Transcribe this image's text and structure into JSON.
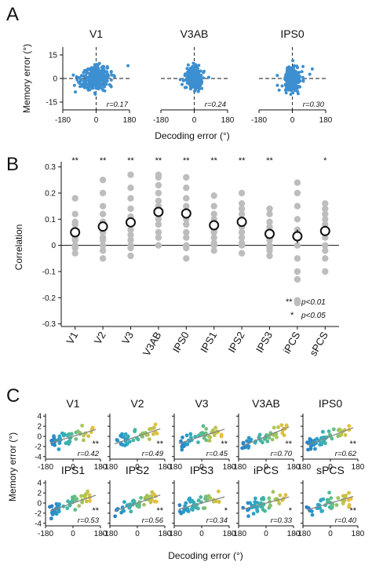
{
  "colors": {
    "scatter_blue": "#3c8fd0",
    "gray_point": "#bdbdbd",
    "colormap": [
      "#2c7fc4",
      "#2aa6c8",
      "#49b89a",
      "#a6c557",
      "#efbe3a"
    ],
    "fit_line": "#888888",
    "axis": "#111111"
  },
  "chart_data": [
    {
      "panel": "A",
      "type": "scatter",
      "ylabel": "Memory error (°)",
      "xlabel": "Decoding error (°)",
      "xticks": [
        "-180",
        "0",
        "180"
      ],
      "yticks": [
        "15",
        "0",
        "-15"
      ],
      "xlim": [
        -180,
        180
      ],
      "ylim": [
        -20,
        20
      ],
      "subplots": [
        {
          "title": "V1",
          "r": "r=0.17",
          "r_value": 0.17,
          "n_points": 300
        },
        {
          "title": "V3AB",
          "r": "r=0.24",
          "r_value": 0.24,
          "n_points": 240
        },
        {
          "title": "IPS0",
          "r": "r=0.30",
          "r_value": 0.3,
          "n_points": 240
        }
      ]
    },
    {
      "panel": "B",
      "type": "scatter",
      "ylabel": "Correlation",
      "ylim": [
        -0.31,
        0.32
      ],
      "yticks": [
        "0.3",
        "0.2",
        "0.1",
        "0",
        "-0.1",
        "-0.2",
        "-0.3"
      ],
      "categories": [
        "V1",
        "V2",
        "V3",
        "V3AB",
        "IPS0",
        "IPS1",
        "IPS2",
        "IPS3",
        "iPCS",
        "sPCS"
      ],
      "mean": [
        0.05,
        0.072,
        0.088,
        0.128,
        0.122,
        0.077,
        0.09,
        0.044,
        0.035,
        0.055
      ],
      "sem": [
        0.015,
        0.018,
        0.018,
        0.018,
        0.02,
        0.015,
        0.017,
        0.016,
        0.025,
        0.02
      ],
      "significance": [
        "**",
        "**",
        "**",
        "**",
        "**",
        "**",
        "**",
        "**",
        "",
        "*"
      ],
      "individual": [
        [
          0.18,
          0.12,
          0.09,
          0.08,
          0.06,
          0.05,
          0.04,
          0.03,
          0.02,
          -0.01,
          -0.03,
          0.0
        ],
        [
          0.25,
          0.2,
          0.15,
          0.12,
          0.09,
          0.07,
          0.05,
          0.03,
          0.02,
          -0.02,
          -0.05,
          0.0
        ],
        [
          0.27,
          0.22,
          0.18,
          0.14,
          0.11,
          0.09,
          0.06,
          0.04,
          0.02,
          -0.01,
          -0.04,
          0.0
        ],
        [
          0.27,
          0.26,
          0.23,
          0.2,
          0.17,
          0.15,
          0.13,
          0.1,
          0.08,
          0.05,
          0.03,
          0.0
        ],
        [
          0.26,
          0.22,
          0.18,
          0.15,
          0.13,
          0.1,
          0.08,
          0.05,
          0.03,
          -0.01,
          -0.05,
          0.0
        ],
        [
          0.19,
          0.15,
          0.12,
          0.1,
          0.08,
          0.07,
          0.06,
          0.05,
          0.03,
          0.01,
          -0.02,
          0.0
        ],
        [
          0.2,
          0.16,
          0.14,
          0.12,
          0.1,
          0.08,
          0.07,
          0.05,
          0.03,
          0.01,
          -0.03,
          0.0
        ],
        [
          0.14,
          0.12,
          0.09,
          0.07,
          0.05,
          0.04,
          0.03,
          0.02,
          0.0,
          -0.02,
          -0.04,
          -0.01
        ],
        [
          0.24,
          0.2,
          0.15,
          0.1,
          0.06,
          0.03,
          0.0,
          -0.05,
          -0.1,
          -0.13,
          -0.21,
          -0.22
        ],
        [
          0.16,
          0.14,
          0.12,
          0.1,
          0.08,
          0.06,
          0.05,
          0.03,
          0.0,
          -0.02,
          -0.05,
          -0.1
        ]
      ],
      "legend": [
        {
          "stars": "**",
          "label": "p<0.01"
        },
        {
          "stars": "*",
          "label": "p<0.05"
        }
      ]
    },
    {
      "panel": "C",
      "type": "scatter",
      "ylabel": "Memory error (°)",
      "xlabel": "Decoding error (°)",
      "xticks": [
        "-180",
        "0",
        "180"
      ],
      "yticks": [
        "4",
        "2",
        "0",
        "-2",
        "-4"
      ],
      "xlim": [
        -180,
        180
      ],
      "ylim": [
        -4.5,
        4.5
      ],
      "subplots": [
        {
          "title": "V1",
          "r": "r=0.42",
          "r_value": 0.42,
          "sig": "**"
        },
        {
          "title": "V2",
          "r": "r=0.49",
          "r_value": 0.49,
          "sig": "**"
        },
        {
          "title": "V3",
          "r": "r=0.45",
          "r_value": 0.45,
          "sig": "**"
        },
        {
          "title": "V3AB",
          "r": "r=0.70",
          "r_value": 0.7,
          "sig": "**"
        },
        {
          "title": "IPS0",
          "r": "r=0.62",
          "r_value": 0.62,
          "sig": "**"
        },
        {
          "title": "IPS1",
          "r": "r=0.53",
          "r_value": 0.53,
          "sig": "**"
        },
        {
          "title": "IPS2",
          "r": "r=0.56",
          "r_value": 0.56,
          "sig": "**"
        },
        {
          "title": "IPS3",
          "r": "r=0.34",
          "r_value": 0.34,
          "sig": "*"
        },
        {
          "title": "iPCS",
          "r": "r=0.33",
          "r_value": 0.33,
          "sig": "*"
        },
        {
          "title": "sPCS",
          "r": "r=0.40",
          "r_value": 0.4,
          "sig": "**"
        }
      ]
    }
  ],
  "panel_labels": {
    "a": "A",
    "b": "B",
    "c": "C"
  }
}
